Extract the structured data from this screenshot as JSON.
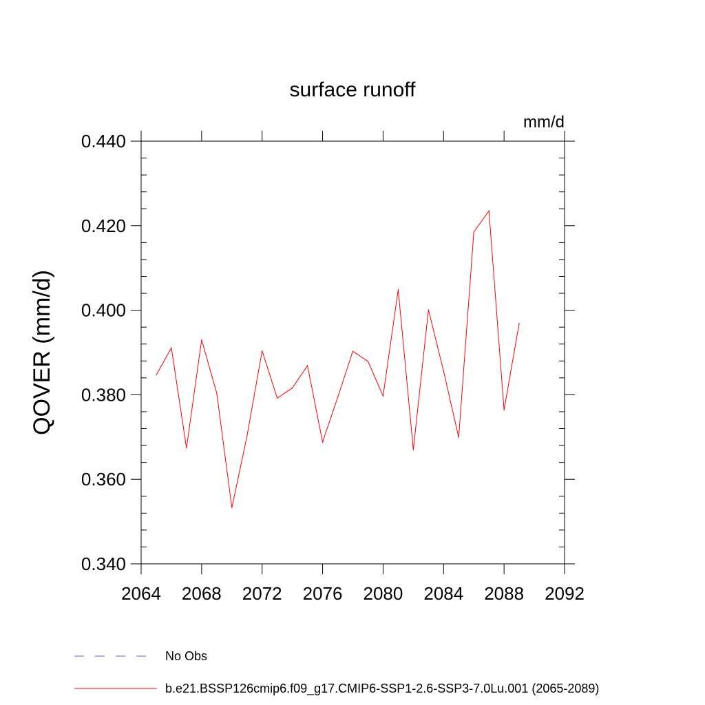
{
  "chart_data": {
    "type": "line",
    "title": "surface runoff",
    "units_label": "mm/d",
    "ylabel": "QOVER  (mm/d)",
    "xlabel": "",
    "xlim": [
      2064,
      2092
    ],
    "ylim": [
      0.34,
      0.44
    ],
    "x_ticks": [
      2064,
      2068,
      2072,
      2076,
      2080,
      2084,
      2088,
      2092
    ],
    "x_tick_labels": [
      "2064",
      "2068",
      "2072",
      "2076",
      "2080",
      "2084",
      "2088",
      "2092"
    ],
    "y_ticks": [
      0.34,
      0.36,
      0.38,
      0.4,
      0.42,
      0.44
    ],
    "y_tick_labels": [
      "0.340",
      "0.360",
      "0.380",
      "0.400",
      "0.420",
      "0.440"
    ],
    "grid": false,
    "legend_position": "bottom",
    "series": [
      {
        "name": "b.e21.BSSP126cmip6.f09_g17.CMIP6-SSP1-2.6-SSP3-7.0Lu.001 (2065-2089)",
        "color": "#ff0000",
        "x": [
          2065,
          2066,
          2067,
          2068,
          2069,
          2070,
          2071,
          2072,
          2073,
          2074,
          2075,
          2076,
          2077,
          2078,
          2079,
          2080,
          2081,
          2082,
          2083,
          2084,
          2085,
          2086,
          2087,
          2088,
          2089
        ],
        "values": [
          0.3847,
          0.3911,
          0.3674,
          0.393,
          0.3804,
          0.3533,
          0.3702,
          0.3904,
          0.3792,
          0.3816,
          0.3869,
          0.3688,
          0.3794,
          0.3903,
          0.3879,
          0.3797,
          0.4049,
          0.367,
          0.4001,
          0.3856,
          0.3699,
          0.4185,
          0.4235,
          0.3764,
          0.3969
        ]
      }
    ],
    "legend": [
      {
        "label": "No Obs",
        "color": "#6a5acd",
        "style": "dashed"
      },
      {
        "label": "b.e21.BSSP126cmip6.f09_g17.CMIP6-SSP1-2.6-SSP3-7.0Lu.001 (2065-2089)",
        "color": "#ff0000",
        "style": "solid"
      }
    ]
  }
}
